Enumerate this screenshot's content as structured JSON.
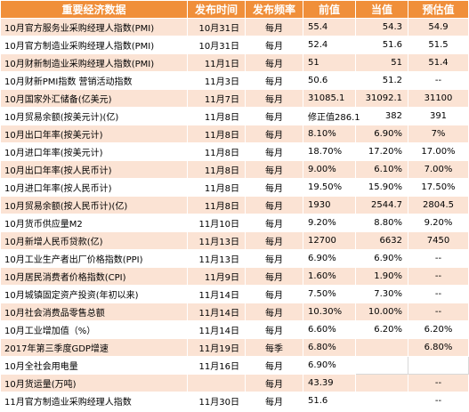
{
  "header": [
    "重要经济数据",
    "发布时间",
    "发布频率",
    "前值",
    "当值",
    "预估值"
  ],
  "rows": [
    [
      "10月官方服务业采购经理人指数(PMI)",
      "10月31日",
      "每月",
      "55.4",
      "54.3",
      "54.9"
    ],
    [
      "10月官方制造业采购经理人指数(PMI)",
      "10月31日",
      "每月",
      "52.4",
      "51.6",
      "51.5"
    ],
    [
      "10月财新制造业采购经理人指数(PMI)",
      "11月1日",
      "每月",
      "51",
      "51",
      "51.4"
    ],
    [
      "10月财新PMI指数 营销活动指数",
      "11月3日",
      "每月",
      "50.6",
      "51.2",
      "--"
    ],
    [
      "10月国家外汇储备(亿美元)",
      "11月7日",
      "每月",
      "31085.1",
      "31092.1",
      "31100"
    ],
    [
      "10月贸易余额(按美元计)(亿)",
      "11月8日",
      "每月",
      "修正值286.1",
      "382",
      "391"
    ],
    [
      "10月出口年率(按美元计)",
      "11月8日",
      "每月",
      "8.10%",
      "6.90%",
      "7%"
    ],
    [
      "10月进口年率(按美元计)",
      "11月8日",
      "每月",
      "18.70%",
      "17.20%",
      "17.00%"
    ],
    [
      "10月出口年率(按人民币计)",
      "11月8日",
      "每月",
      "9.00%",
      "6.10%",
      "7.00%"
    ],
    [
      "10月进口年率(按人民币计)",
      "11月8日",
      "每月",
      "19.50%",
      "15.90%",
      "17.50%"
    ],
    [
      "10月贸易余额(按人民币计)(亿)",
      "11月8日",
      "每月",
      "1930",
      "2544.7",
      "2804.5"
    ],
    [
      "10月货币供应量M2",
      "11月10日",
      "每月",
      "9.20%",
      "8.80%",
      "9.20%"
    ],
    [
      "10月新增人民币贷款(亿)",
      "11月13日",
      "每月",
      "12700",
      "6632",
      "7450"
    ],
    [
      "10月工业生产者出厂价格指数(PPI)",
      "11月13日",
      "每月",
      "6.90%",
      "6.90%",
      "--"
    ],
    [
      "10月居民消费者价格指数(CPI)",
      "11月9日",
      "每月",
      "1.60%",
      "1.90%",
      "--"
    ],
    [
      "10月城镇固定资产投资(年初以来)",
      "11月14日",
      "每月",
      "7.50%",
      "7.30%",
      "--"
    ],
    [
      "10月社会消费品零售总额",
      "11月14日",
      "每月",
      "10.30%",
      "10.00%",
      "--"
    ],
    [
      "10月工业增加值（%）",
      "11月14日",
      "每月",
      "6.60%",
      "6.20%",
      "6.20%"
    ],
    [
      "2017年第三季度GDP增速",
      "11月19日",
      "每季",
      "6.80%",
      "",
      "6.80%"
    ],
    [
      "10月全社会用电量",
      "11月16日",
      "每月",
      "6.90%",
      "",
      ""
    ],
    [
      "10月货运量(万吨)",
      "",
      "每月",
      "43.39",
      "",
      "--"
    ],
    [
      "11月官方制造业采购经理人指数",
      "11月30日",
      "每月",
      "51.6",
      "",
      "--"
    ]
  ]
}
